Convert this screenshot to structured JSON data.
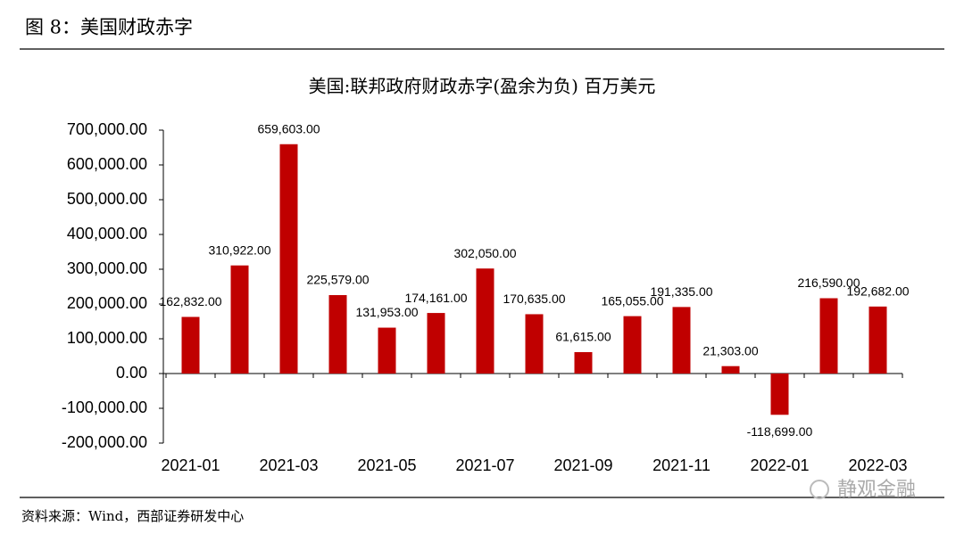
{
  "header": {
    "title": "图 8：美国财政赤字"
  },
  "chart_data": {
    "type": "bar",
    "title": "美国:联邦政府财政赤字(盈余为负) 百万美元",
    "categories": [
      "2021-01",
      null,
      "2021-03",
      null,
      "2021-05",
      null,
      "2021-07",
      null,
      "2021-09",
      null,
      "2021-11",
      null,
      "2022-01",
      null,
      "2022-03"
    ],
    "values": [
      162832,
      310922,
      659603,
      225579,
      131953,
      174161,
      302050,
      170635,
      61615,
      165055,
      191335,
      21303,
      -118699,
      216590,
      192682
    ],
    "value_labels": [
      "162,832.00",
      "310,922.00",
      "659,603.00",
      "225,579.00",
      "131,953.00",
      "174,161.00",
      "302,050.00",
      "170,635.00",
      "61,615.00",
      "165,055.00",
      "191,335.00",
      "21,303.00",
      "-118,699.00",
      "216,590.00",
      "192,682.00"
    ],
    "color": "#c00000",
    "ylim": [
      -200000,
      700000
    ],
    "yticks": [
      {
        "value": -200000,
        "label": "-200,000.00"
      },
      {
        "value": -100000,
        "label": "-100,000.00"
      },
      {
        "value": 0,
        "label": "0.00"
      },
      {
        "value": 100000,
        "label": "100,000.00"
      },
      {
        "value": 200000,
        "label": "200,000.00"
      },
      {
        "value": 300000,
        "label": "300,000.00"
      },
      {
        "value": 400000,
        "label": "400,000.00"
      },
      {
        "value": 500000,
        "label": "500,000.00"
      },
      {
        "value": 600000,
        "label": "600,000.00"
      },
      {
        "value": 700000,
        "label": "700,000.00"
      }
    ]
  },
  "footer": {
    "source": "资料来源：Wind，西部证券研发中心",
    "watermark": "静观金融"
  }
}
